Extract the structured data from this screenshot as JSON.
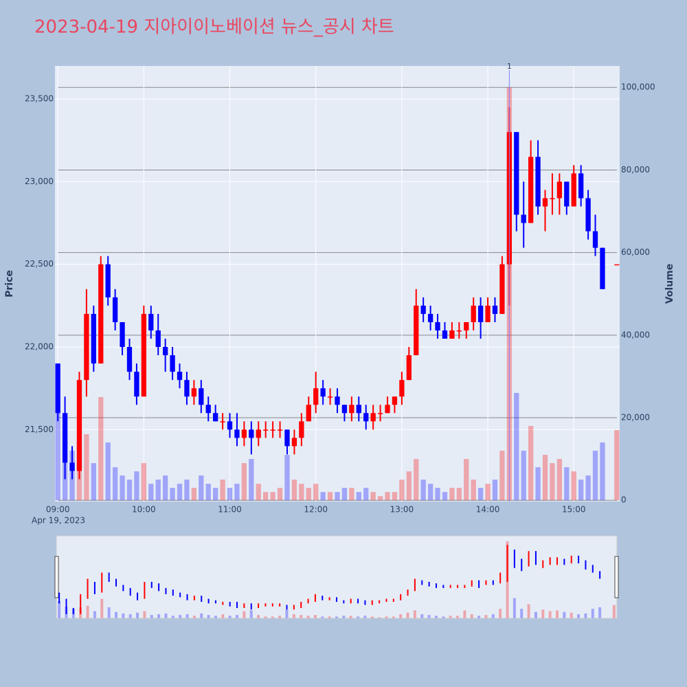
{
  "chart_data": {
    "type": "candlestick",
    "title": "2023-04-19 지아이이노베이션 뉴스_공시 차트",
    "y_title": "Price",
    "y2_title": "Volume",
    "date_label": "Apr 19, 2023",
    "increasing_color": "#ff0000",
    "decreasing_color": "#0000ff",
    "x": [
      "09:00",
      "09:05",
      "09:10",
      "09:15",
      "09:20",
      "09:25",
      "09:30",
      "09:35",
      "09:40",
      "09:45",
      "09:50",
      "09:55",
      "10:00",
      "10:05",
      "10:10",
      "10:15",
      "10:20",
      "10:25",
      "10:30",
      "10:35",
      "10:40",
      "10:45",
      "10:50",
      "10:55",
      "11:00",
      "11:05",
      "11:10",
      "11:15",
      "11:20",
      "11:25",
      "11:30",
      "11:35",
      "11:40",
      "11:45",
      "11:50",
      "11:55",
      "12:00",
      "12:05",
      "12:10",
      "12:15",
      "12:20",
      "12:25",
      "12:30",
      "12:35",
      "12:40",
      "12:45",
      "12:50",
      "12:55",
      "13:00",
      "13:05",
      "13:10",
      "13:15",
      "13:20",
      "13:25",
      "13:30",
      "13:35",
      "13:40",
      "13:45",
      "13:50",
      "13:55",
      "14:00",
      "14:05",
      "14:10",
      "14:15",
      "14:20",
      "14:25",
      "14:30",
      "14:35",
      "14:40",
      "14:45",
      "14:50",
      "14:55",
      "15:00",
      "15:05",
      "15:10",
      "15:15",
      "15:20",
      "15:30"
    ],
    "open": [
      21900,
      21600,
      21300,
      21250,
      21800,
      22200,
      21900,
      22500,
      22300,
      22150,
      22000,
      21850,
      21700,
      22200,
      22100,
      22000,
      21950,
      21850,
      21800,
      21700,
      21750,
      21650,
      21600,
      21550,
      21550,
      21500,
      21450,
      21500,
      21450,
      21500,
      21500,
      21500,
      21500,
      21400,
      21450,
      21550,
      21650,
      21750,
      21700,
      21700,
      21650,
      21600,
      21650,
      21600,
      21550,
      21600,
      21600,
      21650,
      21700,
      21800,
      21950,
      22250,
      22200,
      22150,
      22100,
      22050,
      22100,
      22100,
      22150,
      22250,
      22150,
      22250,
      22200,
      22500,
      23300,
      22800,
      22750,
      23150,
      22850,
      22900,
      22900,
      23000,
      22850,
      23050,
      22900,
      22700,
      22600,
      22500
    ],
    "high": [
      21900,
      21700,
      21400,
      21850,
      22350,
      22250,
      22550,
      22550,
      22350,
      22150,
      22050,
      21900,
      22250,
      22250,
      22200,
      22050,
      22000,
      21900,
      21850,
      21800,
      21800,
      21700,
      21650,
      21600,
      21600,
      21600,
      21550,
      21550,
      21550,
      21550,
      21550,
      21550,
      21500,
      21500,
      21600,
      21700,
      21850,
      21800,
      21750,
      21750,
      21650,
      21700,
      21700,
      21650,
      21650,
      21650,
      21700,
      21700,
      21850,
      22000,
      22350,
      22300,
      22250,
      22200,
      22150,
      22150,
      22150,
      22150,
      22300,
      22300,
      22300,
      22300,
      22550,
      23450,
      23300,
      23000,
      23250,
      23250,
      22950,
      23050,
      23050,
      23000,
      23100,
      23100,
      22950,
      22800,
      22600,
      22500
    ],
    "low": [
      21550,
      21200,
      21200,
      21200,
      21700,
      21850,
      21900,
      22250,
      22100,
      21950,
      21800,
      21650,
      21700,
      22050,
      21950,
      21850,
      21800,
      21750,
      21650,
      21650,
      21600,
      21550,
      21550,
      21500,
      21450,
      21400,
      21400,
      21350,
      21400,
      21450,
      21450,
      21450,
      21350,
      21350,
      21400,
      21550,
      21600,
      21650,
      21650,
      21600,
      21550,
      21550,
      21550,
      21500,
      21500,
      21550,
      21600,
      21600,
      21650,
      21800,
      21950,
      22150,
      22100,
      22050,
      22050,
      22050,
      22050,
      22050,
      22100,
      22050,
      22150,
      22150,
      22200,
      22250,
      22700,
      22600,
      22750,
      22800,
      22700,
      22800,
      22800,
      22800,
      22850,
      22850,
      22650,
      22550,
      22350,
      22500
    ],
    "close": [
      21600,
      21300,
      21250,
      21800,
      22200,
      21900,
      22500,
      22300,
      22150,
      22000,
      21850,
      21700,
      22200,
      22100,
      22000,
      21950,
      21850,
      21800,
      21700,
      21750,
      21650,
      21600,
      21550,
      21550,
      21500,
      21450,
      21500,
      21450,
      21500,
      21500,
      21500,
      21500,
      21400,
      21450,
      21550,
      21650,
      21750,
      21700,
      21700,
      21650,
      21600,
      21650,
      21600,
      21550,
      21600,
      21600,
      21650,
      21700,
      21800,
      21950,
      22250,
      22200,
      22150,
      22100,
      22050,
      22100,
      22100,
      22150,
      22250,
      22150,
      22250,
      22200,
      22500,
      23300,
      22800,
      22750,
      23150,
      22850,
      22900,
      22900,
      23000,
      22850,
      23050,
      22900,
      22700,
      22600,
      22350,
      22500
    ],
    "volume": [
      22000,
      15000,
      12000,
      14000,
      16000,
      9000,
      25000,
      14000,
      8000,
      6000,
      5000,
      7000,
      9000,
      4000,
      5000,
      6000,
      3000,
      4000,
      5000,
      3000,
      6000,
      4000,
      3000,
      5000,
      3000,
      4000,
      9000,
      10000,
      4000,
      2000,
      2000,
      3000,
      11000,
      5000,
      4000,
      3000,
      4000,
      2000,
      2000,
      2000,
      3000,
      3000,
      2000,
      3000,
      2000,
      1000,
      2000,
      2000,
      5000,
      7000,
      10000,
      5000,
      4000,
      3000,
      2000,
      3000,
      3000,
      10000,
      5000,
      3000,
      4000,
      5000,
      12000,
      100000,
      26000,
      12000,
      18000,
      8000,
      11000,
      9000,
      10000,
      8000,
      7000,
      5000,
      6000,
      12000,
      14000,
      17000
    ],
    "xlim": [
      "08:58",
      "15:32"
    ],
    "xticks": [
      "09:00",
      "10:00",
      "11:00",
      "12:00",
      "13:00",
      "14:00",
      "15:00"
    ],
    "ylim": [
      21065,
      23700
    ],
    "yticks": [
      {
        "value": 21500,
        "label": "21,500"
      },
      {
        "value": 22000,
        "label": "22,000"
      },
      {
        "value": 22500,
        "label": "22,500"
      },
      {
        "value": 23000,
        "label": "23,000"
      },
      {
        "value": 23500,
        "label": "23,500"
      }
    ],
    "y2lim": [
      -300,
      105200
    ],
    "y2ticks": [
      0,
      {
        "value": 20000,
        "label": "20,000"
      },
      {
        "value": 40000,
        "label": "40,000"
      },
      {
        "value": 60000,
        "label": "60,000"
      },
      {
        "value": 80000,
        "label": "80,000"
      },
      {
        "value": 100000,
        "label": "100,000"
      }
    ],
    "annotations": [
      {
        "x": "14:15",
        "text": "1"
      }
    ]
  }
}
